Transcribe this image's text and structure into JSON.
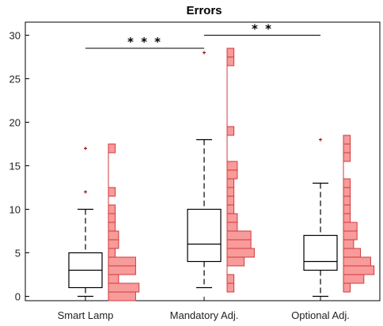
{
  "chart_data": {
    "type": "box",
    "title": "Errors",
    "xlabel": "",
    "ylabel": "",
    "ylim": [
      -0.5,
      31.5
    ],
    "yticks": [
      0,
      5,
      10,
      15,
      20,
      25,
      30
    ],
    "grid": false,
    "categories": [
      "Smart Lamp",
      "Mandatory Adj.",
      "Optional Adj."
    ],
    "boxes": [
      {
        "category": "Smart Lamp",
        "whisker_low": 0,
        "q1": 1,
        "median": 3,
        "q3": 5,
        "whisker_high": 10,
        "outliers": [
          12,
          17
        ]
      },
      {
        "category": "Mandatory Adj.",
        "whisker_low": 1,
        "q1": 4,
        "median": 6,
        "q3": 10,
        "whisker_high": 18,
        "outliers": [
          28
        ]
      },
      {
        "category": "Optional Adj.",
        "whisker_low": 0,
        "q1": 3,
        "median": 4,
        "q3": 7,
        "whisker_high": 13,
        "outliers": [
          18
        ]
      }
    ],
    "histograms": [
      {
        "category": "Smart Lamp",
        "bins": [
          {
            "value": 0,
            "count": 8
          },
          {
            "value": 1,
            "count": 9
          },
          {
            "value": 2,
            "count": 3
          },
          {
            "value": 3,
            "count": 8
          },
          {
            "value": 4,
            "count": 8
          },
          {
            "value": 5,
            "count": 2
          },
          {
            "value": 6,
            "count": 3
          },
          {
            "value": 7,
            "count": 3
          },
          {
            "value": 8,
            "count": 2
          },
          {
            "value": 9,
            "count": 2
          },
          {
            "value": 10,
            "count": 2
          },
          {
            "value": 12,
            "count": 2
          },
          {
            "value": 17,
            "count": 2
          }
        ]
      },
      {
        "category": "Mandatory Adj.",
        "bins": [
          {
            "value": 1,
            "count": 2
          },
          {
            "value": 2,
            "count": 2
          },
          {
            "value": 4,
            "count": 5
          },
          {
            "value": 5,
            "count": 8
          },
          {
            "value": 6,
            "count": 7
          },
          {
            "value": 7,
            "count": 7
          },
          {
            "value": 8,
            "count": 3
          },
          {
            "value": 9,
            "count": 3
          },
          {
            "value": 10,
            "count": 2
          },
          {
            "value": 11,
            "count": 2
          },
          {
            "value": 12,
            "count": 2
          },
          {
            "value": 13,
            "count": 2
          },
          {
            "value": 14,
            "count": 3
          },
          {
            "value": 15,
            "count": 3
          },
          {
            "value": 19,
            "count": 2
          },
          {
            "value": 27,
            "count": 2
          },
          {
            "value": 28,
            "count": 2
          }
        ]
      },
      {
        "category": "Optional Adj.",
        "bins": [
          {
            "value": 1,
            "count": 2
          },
          {
            "value": 2,
            "count": 6
          },
          {
            "value": 3,
            "count": 9
          },
          {
            "value": 4,
            "count": 8
          },
          {
            "value": 5,
            "count": 5
          },
          {
            "value": 6,
            "count": 3
          },
          {
            "value": 7,
            "count": 4
          },
          {
            "value": 8,
            "count": 4
          },
          {
            "value": 9,
            "count": 2
          },
          {
            "value": 10,
            "count": 2
          },
          {
            "value": 11,
            "count": 2
          },
          {
            "value": 12,
            "count": 2
          },
          {
            "value": 13,
            "count": 2
          },
          {
            "value": 16,
            "count": 2
          },
          {
            "value": 17,
            "count": 2
          },
          {
            "value": 18,
            "count": 2
          }
        ]
      }
    ],
    "significance": [
      {
        "from": "Smart Lamp",
        "to": "Mandatory Adj.",
        "y": 28.5,
        "label": "* * *"
      },
      {
        "from": "Mandatory Adj.",
        "to": "Optional Adj.",
        "y": 30.0,
        "label": "* *"
      }
    ],
    "colors": {
      "box": "#000000",
      "histogram_fill": "#f79b9b",
      "histogram_edge": "#d33a3a",
      "outlier": "#a51414"
    }
  }
}
